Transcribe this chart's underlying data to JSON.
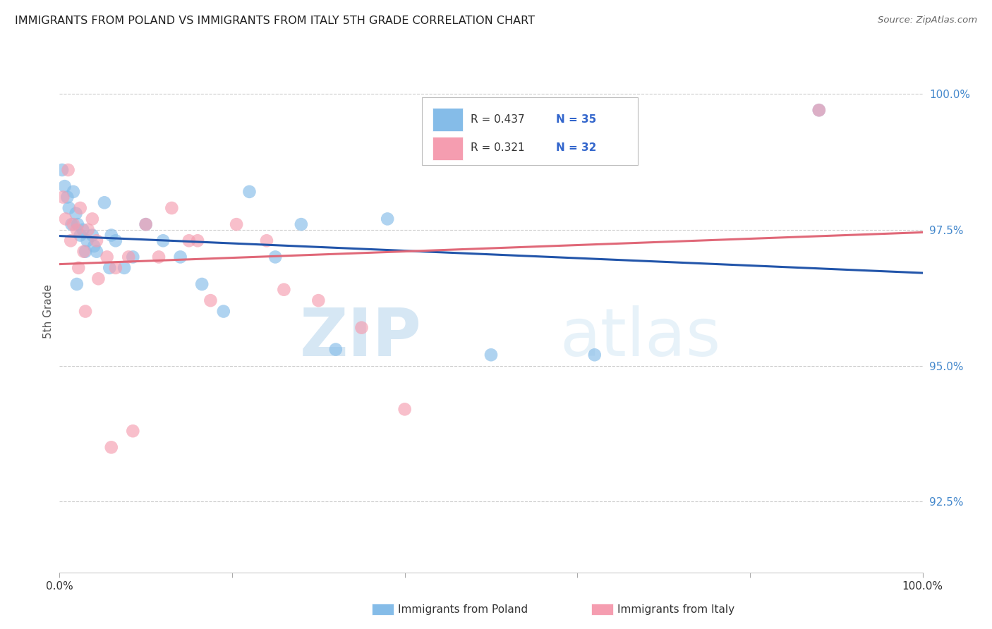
{
  "title": "IMMIGRANTS FROM POLAND VS IMMIGRANTS FROM ITALY 5TH GRADE CORRELATION CHART",
  "source": "Source: ZipAtlas.com",
  "ylabel": "5th Grade",
  "xlim": [
    0.0,
    100.0
  ],
  "ylim": [
    91.2,
    100.8
  ],
  "yticks": [
    92.5,
    95.0,
    97.5,
    100.0
  ],
  "ytick_labels": [
    "92.5%",
    "95.0%",
    "97.5%",
    "100.0%"
  ],
  "xticks": [
    0.0,
    20.0,
    40.0,
    60.0,
    80.0,
    100.0
  ],
  "xtick_labels": [
    "0.0%",
    "",
    "",
    "",
    "",
    "100.0%"
  ],
  "watermark1": "ZIP",
  "watermark2": "atlas",
  "legend_blue_r": "R = 0.437",
  "legend_blue_n": "N = 35",
  "legend_pink_r": "R = 0.321",
  "legend_pink_n": "N = 32",
  "blue_color": "#85bce8",
  "pink_color": "#f59db0",
  "blue_line_color": "#2255aa",
  "pink_line_color": "#e06878",
  "blue_x": [
    0.3,
    0.6,
    0.9,
    1.1,
    1.4,
    1.6,
    1.9,
    2.1,
    2.4,
    2.7,
    3.2,
    3.8,
    4.3,
    5.2,
    5.8,
    6.5,
    7.5,
    8.5,
    10.0,
    12.0,
    14.0,
    16.5,
    19.0,
    22.0,
    25.0,
    28.0,
    32.0,
    38.0,
    50.0,
    62.0,
    88.0,
    2.0,
    3.0,
    4.0,
    6.0
  ],
  "blue_y": [
    98.6,
    98.3,
    98.1,
    97.9,
    97.6,
    98.2,
    97.8,
    97.6,
    97.4,
    97.5,
    97.3,
    97.4,
    97.1,
    98.0,
    96.8,
    97.3,
    96.8,
    97.0,
    97.6,
    97.3,
    97.0,
    96.5,
    96.0,
    98.2,
    97.0,
    97.6,
    95.3,
    97.7,
    95.2,
    95.2,
    99.7,
    96.5,
    97.1,
    97.2,
    97.4
  ],
  "pink_x": [
    0.4,
    0.7,
    1.0,
    1.3,
    1.6,
    2.0,
    2.4,
    2.8,
    3.3,
    3.8,
    4.3,
    5.5,
    6.5,
    8.0,
    10.0,
    11.5,
    13.0,
    15.0,
    17.5,
    20.5,
    24.0,
    26.0,
    30.0,
    35.0,
    40.0,
    2.2,
    3.0,
    4.5,
    6.0,
    8.5,
    16.0,
    88.0
  ],
  "pink_y": [
    98.1,
    97.7,
    98.6,
    97.3,
    97.6,
    97.5,
    97.9,
    97.1,
    97.5,
    97.7,
    97.3,
    97.0,
    96.8,
    97.0,
    97.6,
    97.0,
    97.9,
    97.3,
    96.2,
    97.6,
    97.3,
    96.4,
    96.2,
    95.7,
    94.2,
    96.8,
    96.0,
    96.6,
    93.5,
    93.8,
    97.3,
    99.7
  ]
}
